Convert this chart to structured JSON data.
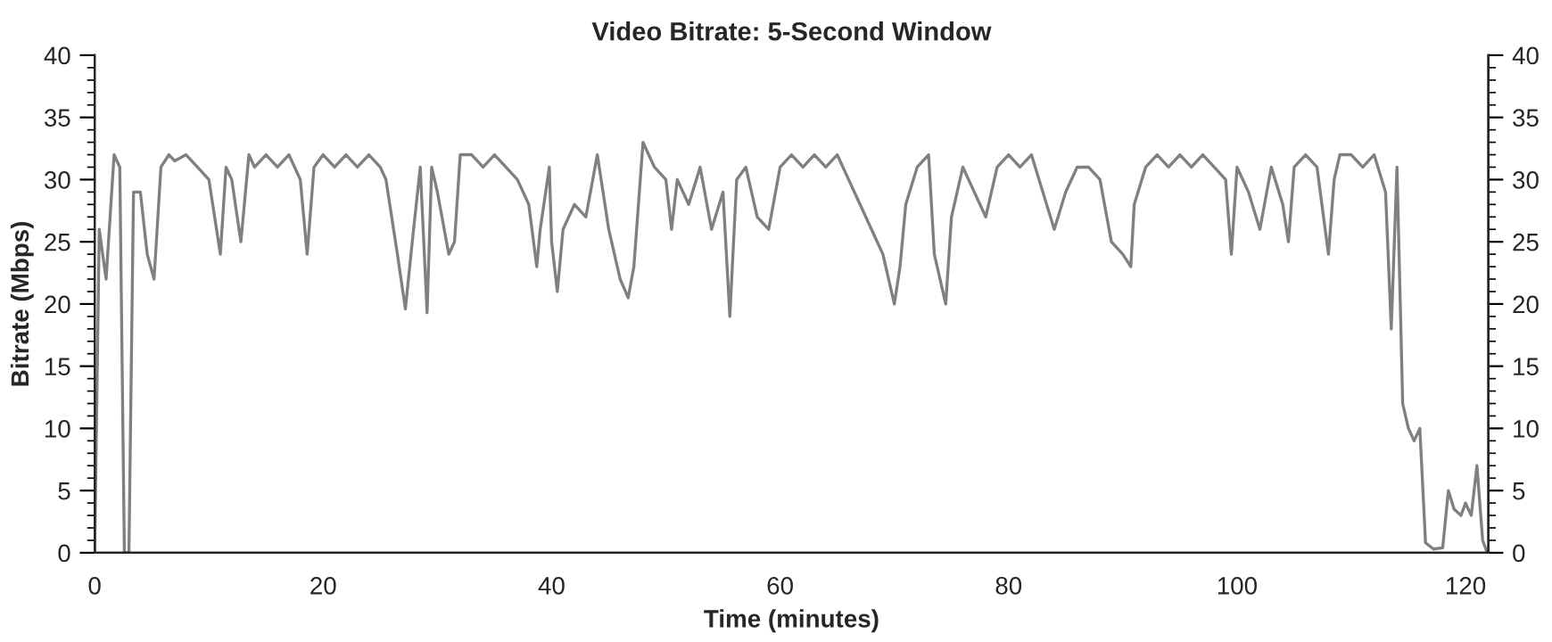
{
  "chart_data": {
    "type": "line",
    "title": "Video Bitrate: 5-Second Window",
    "xlabel": "Time (minutes)",
    "ylabel": "Bitrate (Mbps)",
    "xlim": [
      0,
      122
    ],
    "xticks": [
      0,
      20,
      40,
      60,
      80,
      100,
      120
    ],
    "ylim": [
      0,
      40
    ],
    "yticks": [
      0,
      5,
      10,
      15,
      20,
      25,
      30,
      35,
      40
    ],
    "y2lim": [
      0,
      40
    ],
    "y2ticks": [
      0,
      5,
      10,
      15,
      20,
      25,
      30,
      35,
      40
    ],
    "grid": false,
    "line_style": "solid",
    "series": [
      {
        "color": "#808080",
        "x": [
          0,
          0.4,
          1.0,
          1.7,
          2.2,
          2.6,
          3.0,
          3.4,
          4.0,
          4.6,
          5.2,
          5.8,
          6.5,
          7,
          8,
          9,
          10,
          11,
          11.5,
          12,
          12.8,
          13.5,
          14,
          15,
          16,
          17,
          18,
          18.6,
          19.2,
          20,
          21,
          22,
          23,
          24,
          25,
          25.5,
          26.5,
          27.2,
          27.8,
          28.5,
          29.1,
          29.5,
          30,
          31,
          31.5,
          32,
          33,
          34,
          35,
          36,
          37,
          38,
          38.7,
          39,
          39.8,
          40,
          40.5,
          41,
          42,
          43,
          44,
          44.5,
          45,
          46,
          46.7,
          47.2,
          48,
          49,
          50,
          50.5,
          51,
          52,
          53,
          54,
          55,
          55.6,
          56.2,
          57,
          58,
          59,
          60,
          61,
          62,
          63,
          64,
          65,
          66,
          67,
          68,
          69,
          70,
          70.5,
          71,
          72,
          73,
          73.5,
          74.5,
          75,
          76,
          77,
          78,
          79,
          80,
          81,
          82,
          83,
          84,
          85,
          86,
          87,
          88,
          89,
          90,
          90.7,
          91,
          92,
          93,
          94,
          95,
          96,
          97,
          98,
          99,
          99.5,
          100,
          101,
          102,
          103,
          104,
          104.5,
          105,
          106,
          107,
          108,
          108.5,
          109,
          110,
          111,
          112,
          113,
          113.5,
          114,
          114.5,
          115,
          115.5,
          116,
          116.5,
          117.2,
          118,
          118.5,
          119,
          119.6,
          120,
          120.5,
          121,
          121.5,
          121.9
        ],
        "values": [
          0,
          26,
          22,
          32,
          31,
          0,
          0,
          29,
          29,
          24,
          22,
          31,
          32,
          31.5,
          32,
          31,
          30,
          24,
          31,
          30,
          25,
          32,
          31,
          32,
          31,
          32,
          30,
          24,
          31,
          32,
          31,
          32,
          31,
          32,
          31,
          30,
          24,
          19.6,
          25,
          31,
          19.3,
          31,
          29,
          24,
          25,
          32,
          32,
          31,
          32,
          31,
          30,
          28,
          23,
          26,
          31,
          25,
          21,
          26,
          28,
          27,
          32,
          29,
          26,
          22,
          20.5,
          23,
          33,
          31,
          30,
          26,
          30,
          28,
          31,
          26,
          29,
          19,
          30,
          31,
          27,
          26,
          31,
          32,
          31,
          32,
          31,
          32,
          30,
          28,
          26,
          24,
          20,
          23,
          28,
          31,
          32,
          24,
          20,
          27,
          31,
          29,
          27,
          31,
          32,
          31,
          32,
          29,
          26,
          29,
          31,
          31,
          30,
          25,
          24,
          23,
          28,
          31,
          32,
          31,
          32,
          31,
          32,
          31,
          30,
          24,
          31,
          29,
          26,
          31,
          28,
          25,
          31,
          32,
          31,
          24,
          30,
          32,
          32,
          31,
          32,
          29,
          18,
          31,
          12,
          10,
          9,
          10,
          0.8,
          0.3,
          0.4,
          5,
          3.5,
          3,
          4,
          3,
          7,
          1,
          0
        ]
      }
    ]
  }
}
